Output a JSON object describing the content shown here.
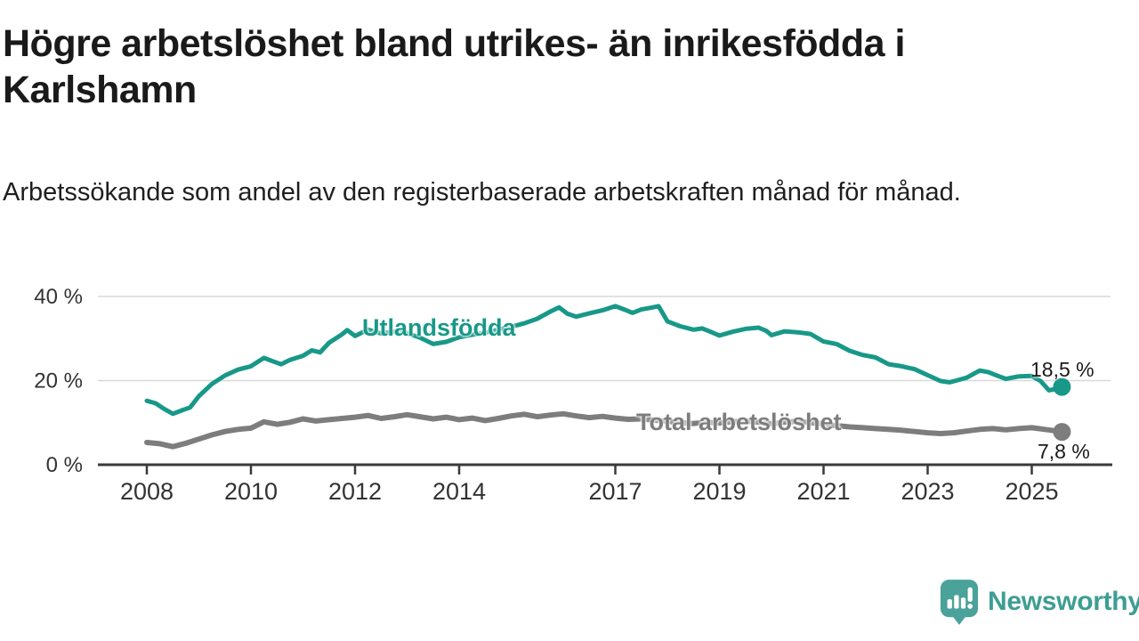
{
  "header": {
    "title": "Högre arbetslöshet bland utrikes- än inrikesfödda i Karlshamn",
    "subtitle": "Arbetssökande som andel av den registerbaserade arbetskraften månad för månad."
  },
  "footer": {
    "brand": "Newsworthy",
    "logo_icon": "speech-bubble-bar-chart-icon"
  },
  "colors": {
    "series_teal": "#189888",
    "series_gray": "#7d7d7d",
    "logo_teal": "#3d9e92",
    "axis": "#3a3a3a",
    "grid": "#d9d9d9",
    "text_dark": "#1a1a1a"
  },
  "chart_data": {
    "type": "line",
    "title": "Högre arbetslöshet bland utrikes- än inrikesfödda i Karlshamn",
    "subtitle": "Arbetssökande som andel av den registerbaserade arbetskraften månad för månad.",
    "unit": "%",
    "x_range": [
      2008.0,
      2025.7
    ],
    "ylim": [
      0,
      40
    ],
    "grid": true,
    "legend_position": "inline-labels",
    "y_ticks": [
      {
        "v": 0,
        "label": "0 %"
      },
      {
        "v": 20,
        "label": "20 %"
      },
      {
        "v": 40,
        "label": "40 %"
      }
    ],
    "x_ticks": [
      {
        "v": 2008,
        "label": "2008"
      },
      {
        "v": 2010,
        "label": "2010"
      },
      {
        "v": 2012,
        "label": "2012"
      },
      {
        "v": 2014,
        "label": "2014"
      },
      {
        "v": 2017,
        "label": "2017"
      },
      {
        "v": 2019,
        "label": "2019"
      },
      {
        "v": 2021,
        "label": "2021"
      },
      {
        "v": 2023,
        "label": "2023"
      },
      {
        "v": 2025,
        "label": "2025"
      }
    ],
    "series": [
      {
        "name": "Utlandsfödda",
        "color": "#189888",
        "stroke_width": 5,
        "end_label": "18,5 %",
        "end_value": 18.5,
        "points": [
          [
            2008.0,
            15.2
          ],
          [
            2008.17,
            14.6
          ],
          [
            2008.33,
            13.3
          ],
          [
            2008.5,
            12.1
          ],
          [
            2008.67,
            12.9
          ],
          [
            2008.83,
            13.6
          ],
          [
            2009.0,
            16.3
          ],
          [
            2009.25,
            19.2
          ],
          [
            2009.5,
            21.2
          ],
          [
            2009.75,
            22.6
          ],
          [
            2010.0,
            23.4
          ],
          [
            2010.25,
            25.4
          ],
          [
            2010.42,
            24.6
          ],
          [
            2010.58,
            23.9
          ],
          [
            2010.75,
            24.9
          ],
          [
            2011.0,
            25.9
          ],
          [
            2011.17,
            27.2
          ],
          [
            2011.33,
            26.7
          ],
          [
            2011.5,
            29.0
          ],
          [
            2011.75,
            31.0
          ],
          [
            2011.85,
            32.0
          ],
          [
            2012.0,
            30.6
          ],
          [
            2012.25,
            32.1
          ],
          [
            2012.5,
            31.2
          ],
          [
            2012.75,
            31.6
          ],
          [
            2013.0,
            31.3
          ],
          [
            2013.25,
            30.2
          ],
          [
            2013.5,
            28.7
          ],
          [
            2013.75,
            29.2
          ],
          [
            2014.0,
            30.3
          ],
          [
            2014.25,
            30.9
          ],
          [
            2014.5,
            31.4
          ],
          [
            2014.75,
            32.1
          ],
          [
            2015.0,
            32.8
          ],
          [
            2015.25,
            33.6
          ],
          [
            2015.5,
            34.7
          ],
          [
            2015.75,
            36.4
          ],
          [
            2015.92,
            37.4
          ],
          [
            2016.08,
            35.9
          ],
          [
            2016.25,
            35.2
          ],
          [
            2016.5,
            36.0
          ],
          [
            2016.75,
            36.7
          ],
          [
            2017.0,
            37.7
          ],
          [
            2017.17,
            36.9
          ],
          [
            2017.33,
            36.1
          ],
          [
            2017.5,
            36.9
          ],
          [
            2017.67,
            37.3
          ],
          [
            2017.83,
            37.7
          ],
          [
            2018.0,
            34.1
          ],
          [
            2018.25,
            32.9
          ],
          [
            2018.5,
            32.1
          ],
          [
            2018.67,
            32.4
          ],
          [
            2018.83,
            31.6
          ],
          [
            2019.0,
            30.7
          ],
          [
            2019.25,
            31.6
          ],
          [
            2019.5,
            32.3
          ],
          [
            2019.75,
            32.6
          ],
          [
            2019.9,
            31.8
          ],
          [
            2020.0,
            30.8
          ],
          [
            2020.25,
            31.7
          ],
          [
            2020.5,
            31.5
          ],
          [
            2020.75,
            31.1
          ],
          [
            2021.0,
            29.3
          ],
          [
            2021.25,
            28.7
          ],
          [
            2021.5,
            27.1
          ],
          [
            2021.75,
            26.1
          ],
          [
            2022.0,
            25.5
          ],
          [
            2022.25,
            23.9
          ],
          [
            2022.5,
            23.4
          ],
          [
            2022.75,
            22.7
          ],
          [
            2023.0,
            21.3
          ],
          [
            2023.25,
            19.9
          ],
          [
            2023.42,
            19.6
          ],
          [
            2023.58,
            20.1
          ],
          [
            2023.75,
            20.7
          ],
          [
            2024.0,
            22.4
          ],
          [
            2024.17,
            22.0
          ],
          [
            2024.33,
            21.2
          ],
          [
            2024.5,
            20.4
          ],
          [
            2024.75,
            21.0
          ],
          [
            2025.0,
            21.1
          ],
          [
            2025.17,
            19.9
          ],
          [
            2025.33,
            17.7
          ],
          [
            2025.5,
            18.1
          ],
          [
            2025.58,
            18.5
          ]
        ]
      },
      {
        "name": "Total arbetslöshet",
        "color": "#7d7d7d",
        "stroke_width": 6,
        "end_label": "7,8 %",
        "end_value": 7.8,
        "points": [
          [
            2008.0,
            5.3
          ],
          [
            2008.25,
            5.0
          ],
          [
            2008.5,
            4.3
          ],
          [
            2008.75,
            5.1
          ],
          [
            2009.0,
            6.1
          ],
          [
            2009.25,
            7.1
          ],
          [
            2009.5,
            7.9
          ],
          [
            2009.75,
            8.4
          ],
          [
            2010.0,
            8.7
          ],
          [
            2010.25,
            10.2
          ],
          [
            2010.5,
            9.6
          ],
          [
            2010.75,
            10.1
          ],
          [
            2011.0,
            10.9
          ],
          [
            2011.25,
            10.4
          ],
          [
            2011.5,
            10.7
          ],
          [
            2011.75,
            11.0
          ],
          [
            2012.0,
            11.3
          ],
          [
            2012.25,
            11.7
          ],
          [
            2012.5,
            11.0
          ],
          [
            2012.75,
            11.4
          ],
          [
            2013.0,
            11.9
          ],
          [
            2013.25,
            11.4
          ],
          [
            2013.5,
            10.9
          ],
          [
            2013.75,
            11.3
          ],
          [
            2014.0,
            10.7
          ],
          [
            2014.25,
            11.1
          ],
          [
            2014.5,
            10.5
          ],
          [
            2014.75,
            11.0
          ],
          [
            2015.0,
            11.6
          ],
          [
            2015.25,
            12.0
          ],
          [
            2015.5,
            11.4
          ],
          [
            2015.75,
            11.8
          ],
          [
            2016.0,
            12.1
          ],
          [
            2016.25,
            11.6
          ],
          [
            2016.5,
            11.2
          ],
          [
            2016.75,
            11.5
          ],
          [
            2017.0,
            11.1
          ],
          [
            2017.25,
            10.8
          ],
          [
            2017.5,
            10.9
          ],
          [
            2017.75,
            10.6
          ],
          [
            2018.0,
            10.3
          ],
          [
            2018.25,
            10.0
          ],
          [
            2018.5,
            9.8
          ],
          [
            2018.75,
            10.1
          ],
          [
            2019.0,
            9.9
          ],
          [
            2019.25,
            10.2
          ],
          [
            2019.5,
            10.4
          ],
          [
            2019.75,
            10.1
          ],
          [
            2020.0,
            9.7
          ],
          [
            2020.25,
            10.1
          ],
          [
            2020.5,
            10.3
          ],
          [
            2020.75,
            10.0
          ],
          [
            2021.0,
            9.6
          ],
          [
            2021.25,
            9.3
          ],
          [
            2021.5,
            9.0
          ],
          [
            2021.75,
            8.8
          ],
          [
            2022.0,
            8.6
          ],
          [
            2022.25,
            8.4
          ],
          [
            2022.5,
            8.2
          ],
          [
            2022.75,
            7.9
          ],
          [
            2023.0,
            7.6
          ],
          [
            2023.25,
            7.4
          ],
          [
            2023.5,
            7.6
          ],
          [
            2023.75,
            8.0
          ],
          [
            2024.0,
            8.4
          ],
          [
            2024.25,
            8.6
          ],
          [
            2024.5,
            8.3
          ],
          [
            2024.75,
            8.6
          ],
          [
            2025.0,
            8.8
          ],
          [
            2025.25,
            8.4
          ],
          [
            2025.42,
            8.1
          ],
          [
            2025.58,
            7.8
          ]
        ]
      }
    ]
  }
}
